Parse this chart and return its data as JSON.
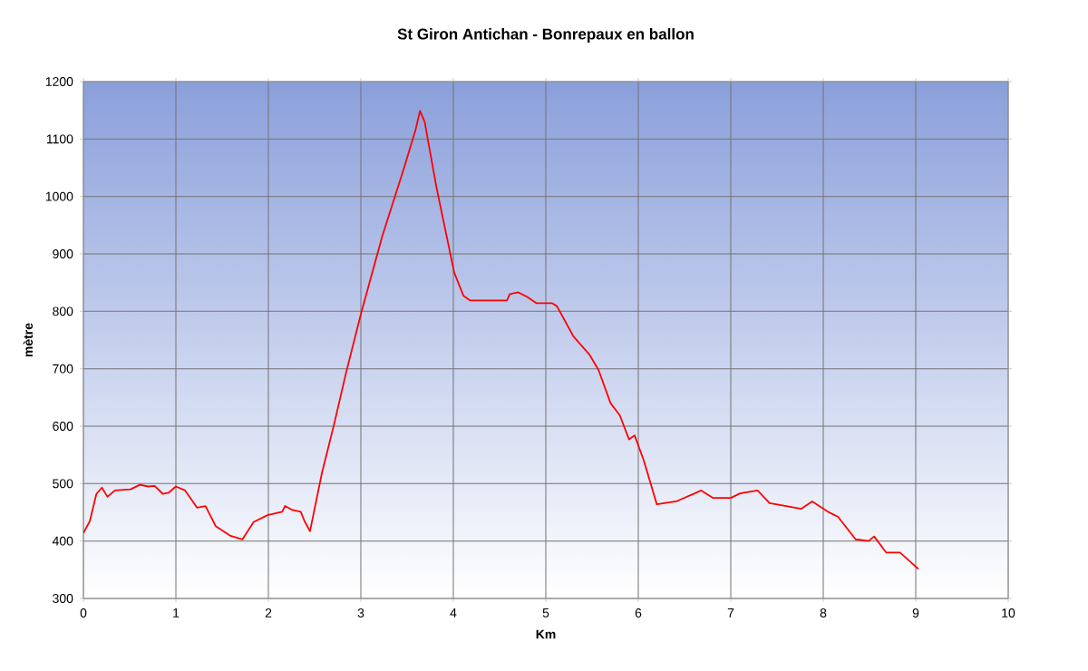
{
  "chart_data": {
    "type": "line",
    "title": "St Giron Antichan - Bonrepaux en ballon",
    "xlabel": "Km",
    "ylabel": "mètre",
    "xlim": [
      0,
      10
    ],
    "ylim": [
      300,
      1200
    ],
    "xticks": [
      0,
      1,
      2,
      3,
      4,
      5,
      6,
      7,
      8,
      9,
      10
    ],
    "yticks": [
      300,
      400,
      500,
      600,
      700,
      800,
      900,
      1000,
      1100,
      1200
    ],
    "grid": true,
    "marker": "none",
    "line_style": "solid",
    "series": [
      {
        "color": "#ff0000",
        "x": [
          0,
          0.07,
          0.14,
          0.2,
          0.26,
          0.34,
          0.51,
          0.61,
          0.7,
          0.77,
          0.86,
          0.92,
          1.0,
          1.1,
          1.23,
          1.32,
          1.43,
          1.59,
          1.72,
          1.84,
          1.99,
          2.15,
          2.18,
          2.26,
          2.35,
          2.39,
          2.45,
          2.58,
          2.71,
          2.84,
          3.0,
          3.23,
          3.46,
          3.59,
          3.64,
          3.69,
          3.82,
          4.01,
          4.11,
          4.18,
          4.58,
          4.61,
          4.7,
          4.8,
          4.9,
          5.07,
          5.12,
          5.3,
          5.47,
          5.57,
          5.7,
          5.8,
          5.9,
          5.96,
          6.06,
          6.2,
          6.41,
          6.68,
          6.81,
          7.0,
          7.1,
          7.29,
          7.42,
          7.6,
          7.76,
          7.88,
          8.05,
          8.16,
          8.35,
          8.49,
          8.55,
          8.68,
          8.83,
          9.03
        ],
        "values": [
          414,
          435,
          482,
          493,
          477,
          488,
          490,
          498,
          495,
          496,
          482,
          484,
          495,
          488,
          458,
          461,
          426,
          409,
          403,
          433,
          445,
          451,
          461,
          454,
          451,
          435,
          417,
          519,
          603,
          693,
          795,
          930,
          1046,
          1115,
          1149,
          1130,
          1014,
          867,
          827,
          819,
          819,
          830,
          833,
          825,
          814,
          814,
          809,
          756,
          725,
          698,
          640,
          619,
          577,
          584,
          540,
          464,
          469,
          488,
          475,
          475,
          483,
          488,
          466,
          461,
          456,
          469,
          451,
          442,
          403,
          400,
          408,
          380,
          380,
          351
        ]
      }
    ]
  }
}
